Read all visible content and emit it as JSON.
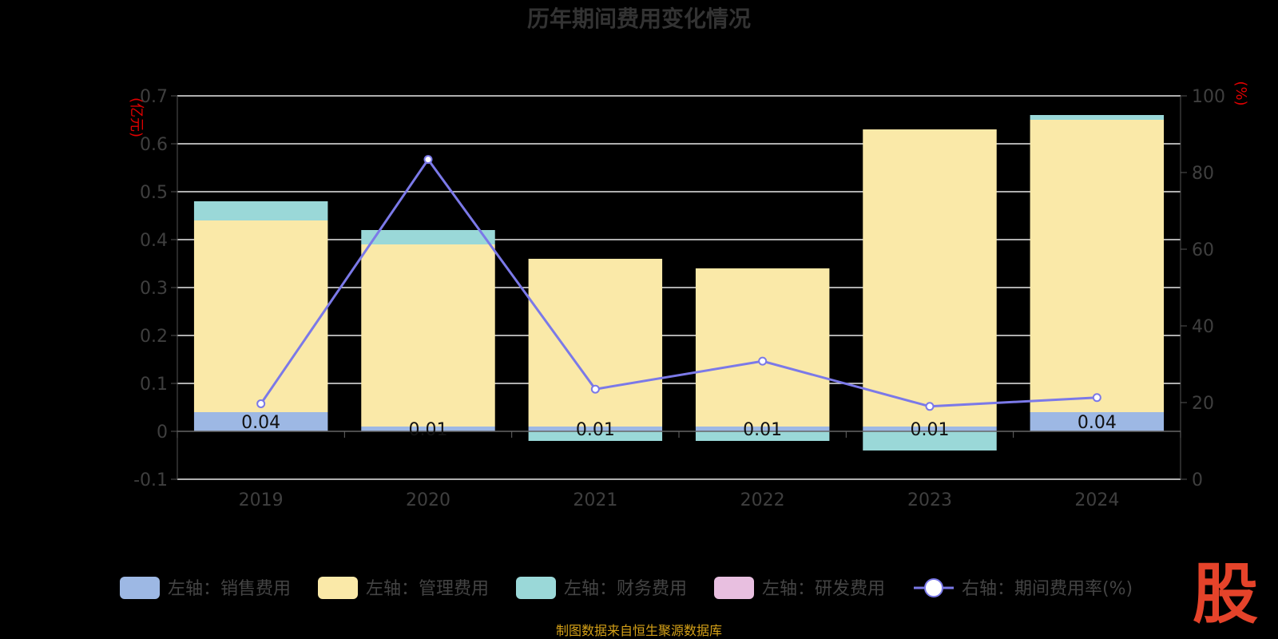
{
  "chart_data": {
    "type": "bar",
    "title": "历年期间费用变化情况",
    "categories": [
      "2019",
      "2020",
      "2021",
      "2022",
      "2023",
      "2024"
    ],
    "left_axis": {
      "unit_label": "(亿元)",
      "ticks": [
        "0.7",
        "0.6",
        "0.5",
        "0.4",
        "0.3",
        "0.2",
        "0.1",
        "0",
        "-0.1"
      ],
      "ylim": [
        -0.1,
        0.7
      ]
    },
    "right_axis": {
      "unit_label": "(%)",
      "ticks": [
        "100",
        "80",
        "60",
        "40",
        "20",
        "0"
      ],
      "ylim": [
        0,
        100
      ]
    },
    "grid": true,
    "stacked": true,
    "series": [
      {
        "name": "左轴：销售费用",
        "axis": "left",
        "kind": "bar",
        "color": "#9db8e4",
        "values": [
          0.04,
          0.01,
          0.01,
          0.01,
          0.01,
          0.04
        ]
      },
      {
        "name": "左轴：管理费用",
        "axis": "left",
        "kind": "bar",
        "color": "#fae9a8",
        "values": [
          0.4,
          0.38,
          0.35,
          0.33,
          0.62,
          0.61
        ]
      },
      {
        "name": "左轴：财务费用",
        "axis": "left",
        "kind": "bar",
        "color": "#9ad8d8",
        "values": [
          0.04,
          0.03,
          -0.02,
          -0.02,
          -0.04,
          0.01
        ]
      },
      {
        "name": "左轴：研发费用",
        "axis": "left",
        "kind": "bar",
        "color": "#e8bfe0",
        "values": [
          0,
          0,
          0,
          0,
          0,
          0
        ]
      },
      {
        "name": "右轴：期间费用率(%)",
        "axis": "right",
        "kind": "line",
        "color": "#7b79e8",
        "values": [
          19.7,
          83.4,
          23.5,
          30.8,
          19.0,
          21.3
        ]
      }
    ],
    "data_labels": [
      "0.04",
      "0.01",
      "0.01",
      "0.01",
      "0.01",
      "0.04"
    ],
    "legend_position": "bottom"
  },
  "source_note": "制图数据来自恒生聚源数据库",
  "logo_text": "股"
}
